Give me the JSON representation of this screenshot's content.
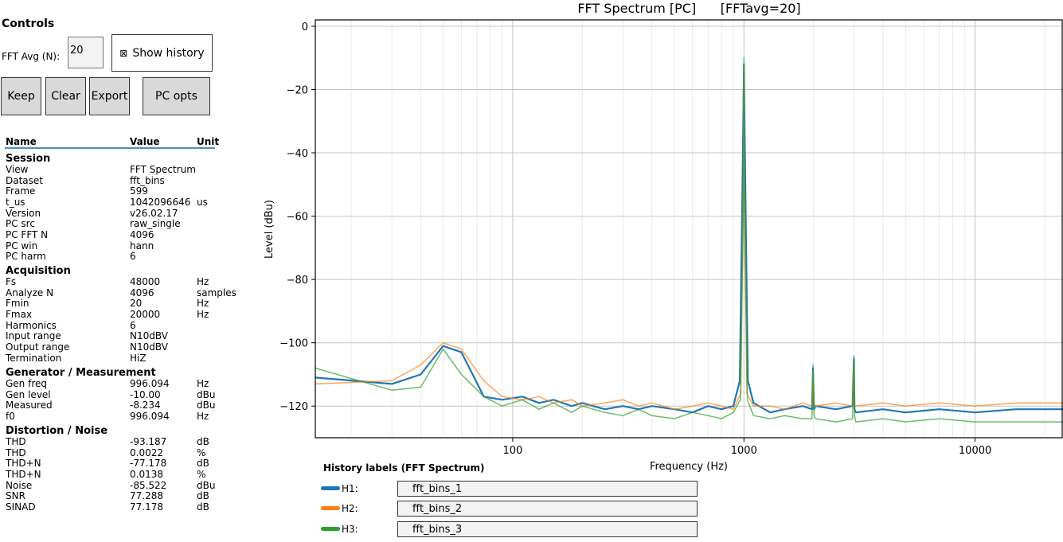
{
  "controls": {
    "title": "Controls",
    "fft_avg_label": "FFT Avg (N):",
    "fft_avg_value": "20",
    "show_history_check": "⊠",
    "show_history_label": "Show history",
    "buttons": {
      "keep": "Keep",
      "clear": "Clear",
      "export": "Export",
      "pc_opts": "PC opts"
    }
  },
  "table": {
    "headers": {
      "name": "Name",
      "value": "Value",
      "unit": "Unit"
    },
    "sections": [
      {
        "title": "Session",
        "rows": [
          {
            "name": "View",
            "value": "FFT Spectrum",
            "unit": ""
          },
          {
            "name": "Dataset",
            "value": "fft_bins",
            "unit": ""
          },
          {
            "name": "Frame",
            "value": "599",
            "unit": ""
          },
          {
            "name": "t_us",
            "value": "1042096646",
            "unit": "us"
          },
          {
            "name": "Version",
            "value": "v26.02.17",
            "unit": ""
          },
          {
            "name": "PC src",
            "value": "raw_single",
            "unit": ""
          },
          {
            "name": "PC FFT N",
            "value": "4096",
            "unit": ""
          },
          {
            "name": "PC win",
            "value": "hann",
            "unit": ""
          },
          {
            "name": "PC harm",
            "value": "6",
            "unit": ""
          }
        ]
      },
      {
        "title": "Acquisition",
        "rows": [
          {
            "name": "Fs",
            "value": "48000",
            "unit": "Hz"
          },
          {
            "name": "Analyze N",
            "value": "4096",
            "unit": "samples"
          },
          {
            "name": "Fmin",
            "value": "20",
            "unit": "Hz"
          },
          {
            "name": "Fmax",
            "value": "20000",
            "unit": "Hz"
          },
          {
            "name": "Harmonics",
            "value": "6",
            "unit": ""
          },
          {
            "name": "Input range",
            "value": "N10dBV",
            "unit": ""
          },
          {
            "name": "Output range",
            "value": "N10dBV",
            "unit": ""
          },
          {
            "name": "Termination",
            "value": "HiZ",
            "unit": ""
          }
        ]
      },
      {
        "title": "Generator / Measurement",
        "rows": [
          {
            "name": "Gen freq",
            "value": "996.094",
            "unit": "Hz"
          },
          {
            "name": "Gen level",
            "value": "-10.00",
            "unit": "dBu"
          },
          {
            "name": "Measured",
            "value": "-8.234",
            "unit": "dBu"
          },
          {
            "name": "f0",
            "value": "996.094",
            "unit": "Hz"
          }
        ]
      },
      {
        "title": "Distortion / Noise",
        "rows": [
          {
            "name": "THD",
            "value": "-93.187",
            "unit": "dB"
          },
          {
            "name": "THD",
            "value": "0.0022",
            "unit": "%"
          },
          {
            "name": "THD+N",
            "value": "-77.178",
            "unit": "dB"
          },
          {
            "name": "THD+N",
            "value": "0.0138",
            "unit": "%"
          },
          {
            "name": "Noise",
            "value": "-85.522",
            "unit": "dBu"
          },
          {
            "name": "SNR",
            "value": "77.288",
            "unit": "dB"
          },
          {
            "name": "SINAD",
            "value": "77.178",
            "unit": "dB"
          }
        ]
      }
    ]
  },
  "chart_data": {
    "type": "line",
    "title": "FFT Spectrum [PC]      [FFTavg=20]",
    "xlabel": "Frequency (Hz)",
    "ylabel": "Level (dBu)",
    "xscale": "log",
    "xlim": [
      14,
      24000
    ],
    "ylim": [
      -130,
      2
    ],
    "xticks": [
      100,
      1000,
      10000
    ],
    "xtick_labels": [
      "100",
      "1000",
      "10000"
    ],
    "yticks": [
      0,
      -20,
      -40,
      -60,
      -80,
      -100,
      -120
    ],
    "ytick_labels": [
      "0",
      "−20",
      "−40",
      "−60",
      "−80",
      "−100",
      "−120"
    ],
    "grid": true,
    "legend": "none",
    "series": [
      {
        "color": "#1f77b4",
        "x": [
          14,
          30,
          40,
          50,
          60,
          75,
          90,
          110,
          130,
          150,
          180,
          200,
          250,
          300,
          350,
          400,
          500,
          600,
          700,
          800,
          900,
          960,
          990,
          1000,
          1010,
          1040,
          1100,
          1300,
          1500,
          1800,
          1970,
          1990,
          2010,
          2040,
          2500,
          2950,
          2990,
          3010,
          3050,
          4000,
          5000,
          7000,
          10000,
          15000,
          24000
        ],
        "y": [
          -111,
          -113,
          -110,
          -101,
          -103,
          -117,
          -118,
          -117,
          -119,
          -118,
          -120,
          -119,
          -121,
          -120,
          -121,
          -120,
          -121,
          -122,
          -120,
          -121,
          -120,
          -112,
          -40,
          -12,
          -40,
          -112,
          -119,
          -122,
          -121,
          -120,
          -121,
          -108,
          -121,
          -120,
          -121,
          -120,
          -105,
          -121,
          -122,
          -121,
          -122,
          -121,
          -122,
          -121,
          -121
        ]
      },
      {
        "color": "#ff7f0e",
        "x": [
          14,
          30,
          40,
          50,
          60,
          75,
          90,
          110,
          130,
          150,
          180,
          200,
          250,
          300,
          350,
          400,
          500,
          600,
          700,
          800,
          900,
          970,
          995,
          1000,
          1005,
          1030,
          1100,
          1300,
          1500,
          1800,
          1970,
          1990,
          2010,
          2040,
          2500,
          2950,
          2990,
          3010,
          3050,
          4000,
          5000,
          7000,
          10000,
          15000,
          24000
        ],
        "y": [
          -113,
          -112,
          -107,
          -100,
          -102,
          -112,
          -117,
          -118,
          -117,
          -119,
          -118,
          -120,
          -119,
          -118,
          -120,
          -119,
          -121,
          -120,
          -119,
          -120,
          -121,
          -116,
          -50,
          -13,
          -50,
          -116,
          -120,
          -120,
          -121,
          -119,
          -120,
          -110,
          -120,
          -120,
          -119,
          -120,
          -107,
          -120,
          -120,
          -119,
          -120,
          -119,
          -120,
          -119,
          -119
        ]
      },
      {
        "color": "#2ca02c",
        "x": [
          14,
          30,
          40,
          50,
          60,
          75,
          90,
          110,
          130,
          150,
          180,
          200,
          250,
          300,
          350,
          400,
          500,
          600,
          700,
          800,
          900,
          965,
          993,
          1000,
          1007,
          1035,
          1100,
          1300,
          1500,
          1800,
          1970,
          1990,
          2010,
          2040,
          2500,
          2950,
          2990,
          3010,
          3050,
          4000,
          5000,
          7000,
          10000,
          15000,
          24000
        ],
        "y": [
          -108,
          -115,
          -114,
          -102,
          -110,
          -117,
          -120,
          -118,
          -121,
          -119,
          -122,
          -120,
          -122,
          -123,
          -121,
          -123,
          -124,
          -122,
          -123,
          -124,
          -122,
          -118,
          -60,
          -10,
          -60,
          -118,
          -123,
          -124,
          -123,
          -124,
          -124,
          -107,
          -123,
          -124,
          -125,
          -124,
          -104,
          -123,
          -125,
          -124,
          -125,
          -124,
          -125,
          -125,
          -125
        ]
      }
    ]
  },
  "history": {
    "title": "History labels (FFT Spectrum)",
    "items": [
      {
        "label": "H1:",
        "value": "fft_bins_1",
        "color": "#1f77b4"
      },
      {
        "label": "H2:",
        "value": "fft_bins_2",
        "color": "#ff7f0e"
      },
      {
        "label": "H3:",
        "value": "fft_bins_3",
        "color": "#2ca02c"
      }
    ]
  }
}
